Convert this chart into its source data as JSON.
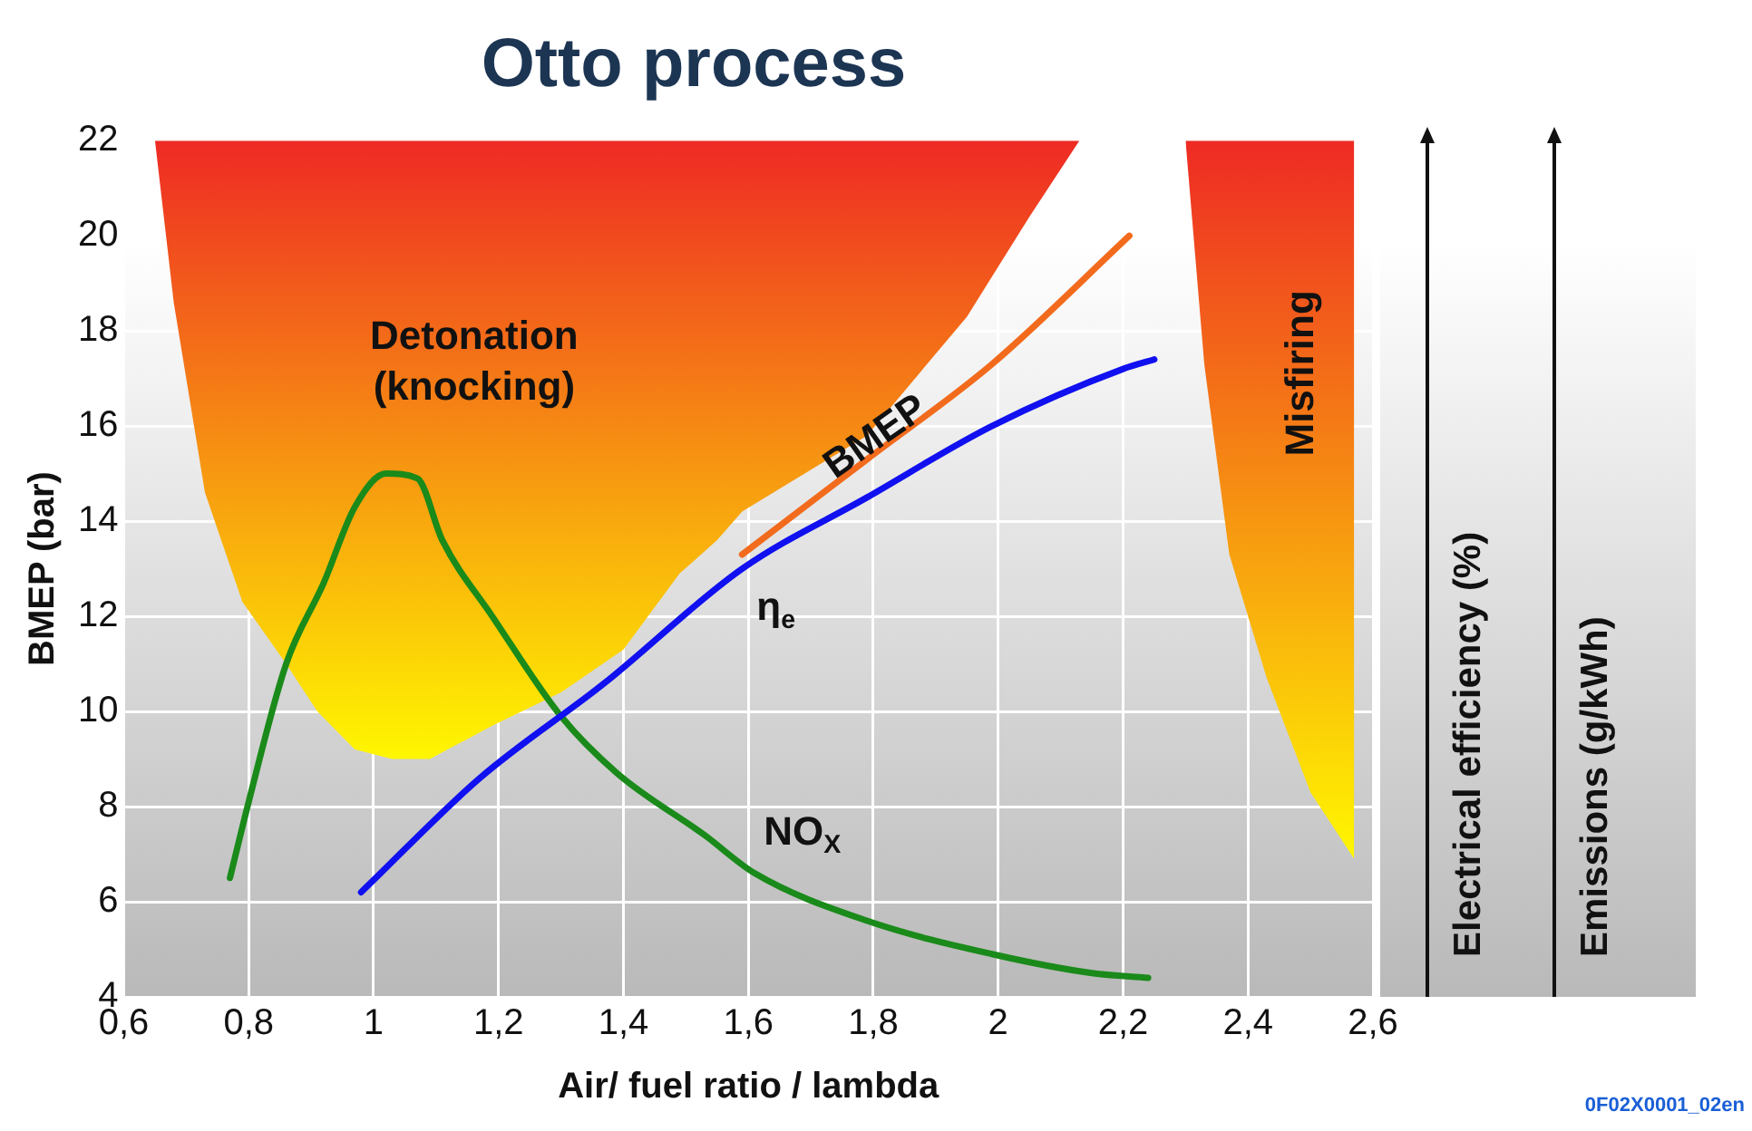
{
  "chart_data": {
    "type": "line",
    "title": "Otto process",
    "xlabel": "Air/ fuel ratio / lambda",
    "ylabel": "BMEP (bar)",
    "xlim": [
      0.6,
      2.6
    ],
    "ylim": [
      4,
      22
    ],
    "xticks": [
      {
        "value": 0.6,
        "label": "0,6"
      },
      {
        "value": 0.8,
        "label": "0,8"
      },
      1,
      {
        "value": 1.2,
        "label": "1,2"
      },
      {
        "value": 1.4,
        "label": "1,4"
      },
      {
        "value": 1.6,
        "label": "1,6"
      },
      {
        "value": 1.8,
        "label": "1,8"
      },
      2,
      {
        "value": 2.2,
        "label": "2,2"
      },
      {
        "value": 2.4,
        "label": "2,4"
      },
      {
        "value": 2.6,
        "label": "2,6"
      }
    ],
    "yticks": [
      4,
      6,
      8,
      10,
      12,
      14,
      16,
      18,
      20,
      22
    ],
    "grid": true,
    "legend": false,
    "marker": "none",
    "line_style": "solid",
    "series": [
      {
        "name": "Detonation (knocking)",
        "type": "area",
        "color": "#ee2a24",
        "x": [
          0.65,
          0.68,
          0.73,
          0.79,
          0.86,
          0.91,
          0.97,
          1.03,
          1.09,
          1.19,
          1.3,
          1.4,
          1.49,
          1.55,
          1.59,
          1.79,
          1.95,
          2.05,
          2.13
        ],
        "values": [
          22,
          18.6,
          14.6,
          12.3,
          11,
          10,
          9.2,
          9,
          9,
          9.7,
          10.4,
          11.3,
          12.9,
          13.6,
          14.2,
          15.8,
          18.3,
          20.4,
          22
        ]
      },
      {
        "name": "Misfiring",
        "type": "area",
        "color": "#ee2a24",
        "x": [
          2.3,
          2.33,
          2.37,
          2.43,
          2.5,
          2.57,
          2.57
        ],
        "values": [
          22,
          17.3,
          13.3,
          10.7,
          8.3,
          6.9,
          22
        ]
      },
      {
        "name": "BMEP",
        "color": "#f26b1d",
        "x": [
          1.59,
          1.79,
          1.99,
          2.21
        ],
        "values": [
          13.3,
          15.3,
          17.3,
          20
        ]
      },
      {
        "name": "η$_{e}$",
        "color": "#1010f0",
        "x": [
          0.98,
          1.17,
          1.37,
          1.59,
          1.79,
          1.99,
          2.2,
          2.25
        ],
        "values": [
          6.2,
          8.6,
          10.6,
          13,
          14.5,
          16,
          17.2,
          17.4
        ]
      },
      {
        "name": "NO$_{X}$",
        "color": "#1a8a1a",
        "x": [
          0.77,
          0.8,
          0.86,
          0.92,
          0.97,
          1.02,
          1.07,
          1.11,
          1.19,
          1.3,
          1.39,
          1.53,
          1.61,
          1.79,
          1.99,
          2.15,
          2.24
        ],
        "values": [
          6.5,
          8.1,
          11,
          12.7,
          14.3,
          15,
          14.9,
          13.6,
          12,
          9.9,
          8.7,
          7.4,
          6.6,
          5.6,
          4.9,
          4.5,
          4.4
        ]
      }
    ],
    "annotations": [
      "Electrical efficiency (%)",
      "Emissions (g/kWh)",
      "0F02X0001_02en"
    ]
  }
}
